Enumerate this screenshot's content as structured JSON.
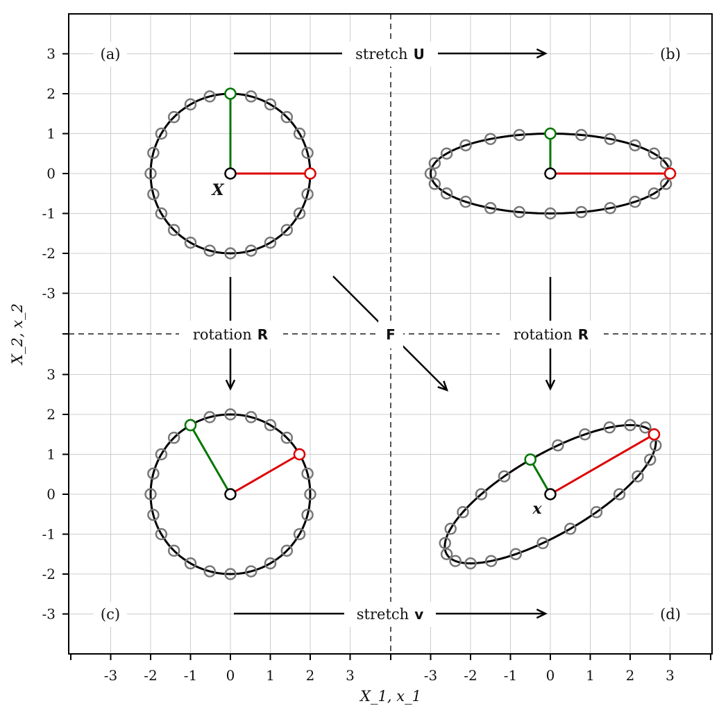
{
  "figure": {
    "x_axis_title": "X_1, x_1",
    "y_axis_title": "X_2, x_2",
    "tick_values": [
      -3,
      -2,
      -1,
      0,
      1,
      2,
      3
    ],
    "tick_labels": [
      "-3",
      "-2",
      "-1",
      "0",
      "1",
      "2",
      "3"
    ],
    "colors": {
      "grid": "#cccccc",
      "divider": "#555555",
      "curve": "#000000",
      "markers": "#777777",
      "vector_1": "#dd0000",
      "vector_2": "#007700"
    }
  },
  "panels": {
    "a": {
      "label": "(a)",
      "point_label": "X",
      "shape": "circle",
      "radius": 2,
      "vector_1": [
        2,
        0
      ],
      "vector_2": [
        0,
        2
      ]
    },
    "b": {
      "label": "(b)",
      "shape": "ellipse",
      "semi_axes": [
        3,
        1
      ],
      "vector_1": [
        3,
        0
      ],
      "vector_2": [
        0,
        1
      ]
    },
    "c": {
      "label": "(c)",
      "shape": "circle",
      "radius": 2,
      "vector_1": [
        1.73,
        1.0
      ],
      "vector_2": [
        -1.0,
        1.73
      ]
    },
    "d": {
      "label": "(d)",
      "point_label": "x",
      "shape": "ellipse",
      "semi_axes": [
        3,
        1
      ],
      "rotation_deg": 30,
      "vector_1": [
        2.6,
        1.5
      ],
      "vector_2": [
        -0.5,
        0.87
      ]
    }
  },
  "operations": {
    "top": {
      "text": "stretch",
      "symbol": "U"
    },
    "bottom": {
      "text": "stretch",
      "symbol": "v"
    },
    "left": {
      "text": "rotation",
      "symbol": "R"
    },
    "right": {
      "text": "rotation",
      "symbol": "R"
    },
    "diagonal": {
      "symbol": "F"
    }
  },
  "chart_data": {
    "type": "scatter",
    "xlabel": "X_1, x_1",
    "ylabel": "X_2, x_2",
    "xlim": [
      -4,
      4
    ],
    "ylim": [
      -4,
      4
    ],
    "grid": true,
    "series": [
      {
        "panel": "(a)",
        "shape": "circle",
        "radius": 2,
        "vectors": [
          [
            2,
            0
          ],
          [
            0,
            2
          ]
        ]
      },
      {
        "panel": "(b)",
        "shape": "ellipse",
        "semi_axes": [
          3,
          1
        ],
        "vectors": [
          [
            3,
            0
          ],
          [
            0,
            1
          ]
        ]
      },
      {
        "panel": "(c)",
        "shape": "circle",
        "radius": 2,
        "vectors": [
          [
            1.73,
            1.0
          ],
          [
            -1.0,
            1.73
          ]
        ]
      },
      {
        "panel": "(d)",
        "shape": "ellipse",
        "semi_axes": [
          3,
          1
        ],
        "rotation_deg": 30,
        "vectors": [
          [
            2.6,
            1.5
          ],
          [
            -0.5,
            0.87
          ]
        ]
      }
    ]
  }
}
